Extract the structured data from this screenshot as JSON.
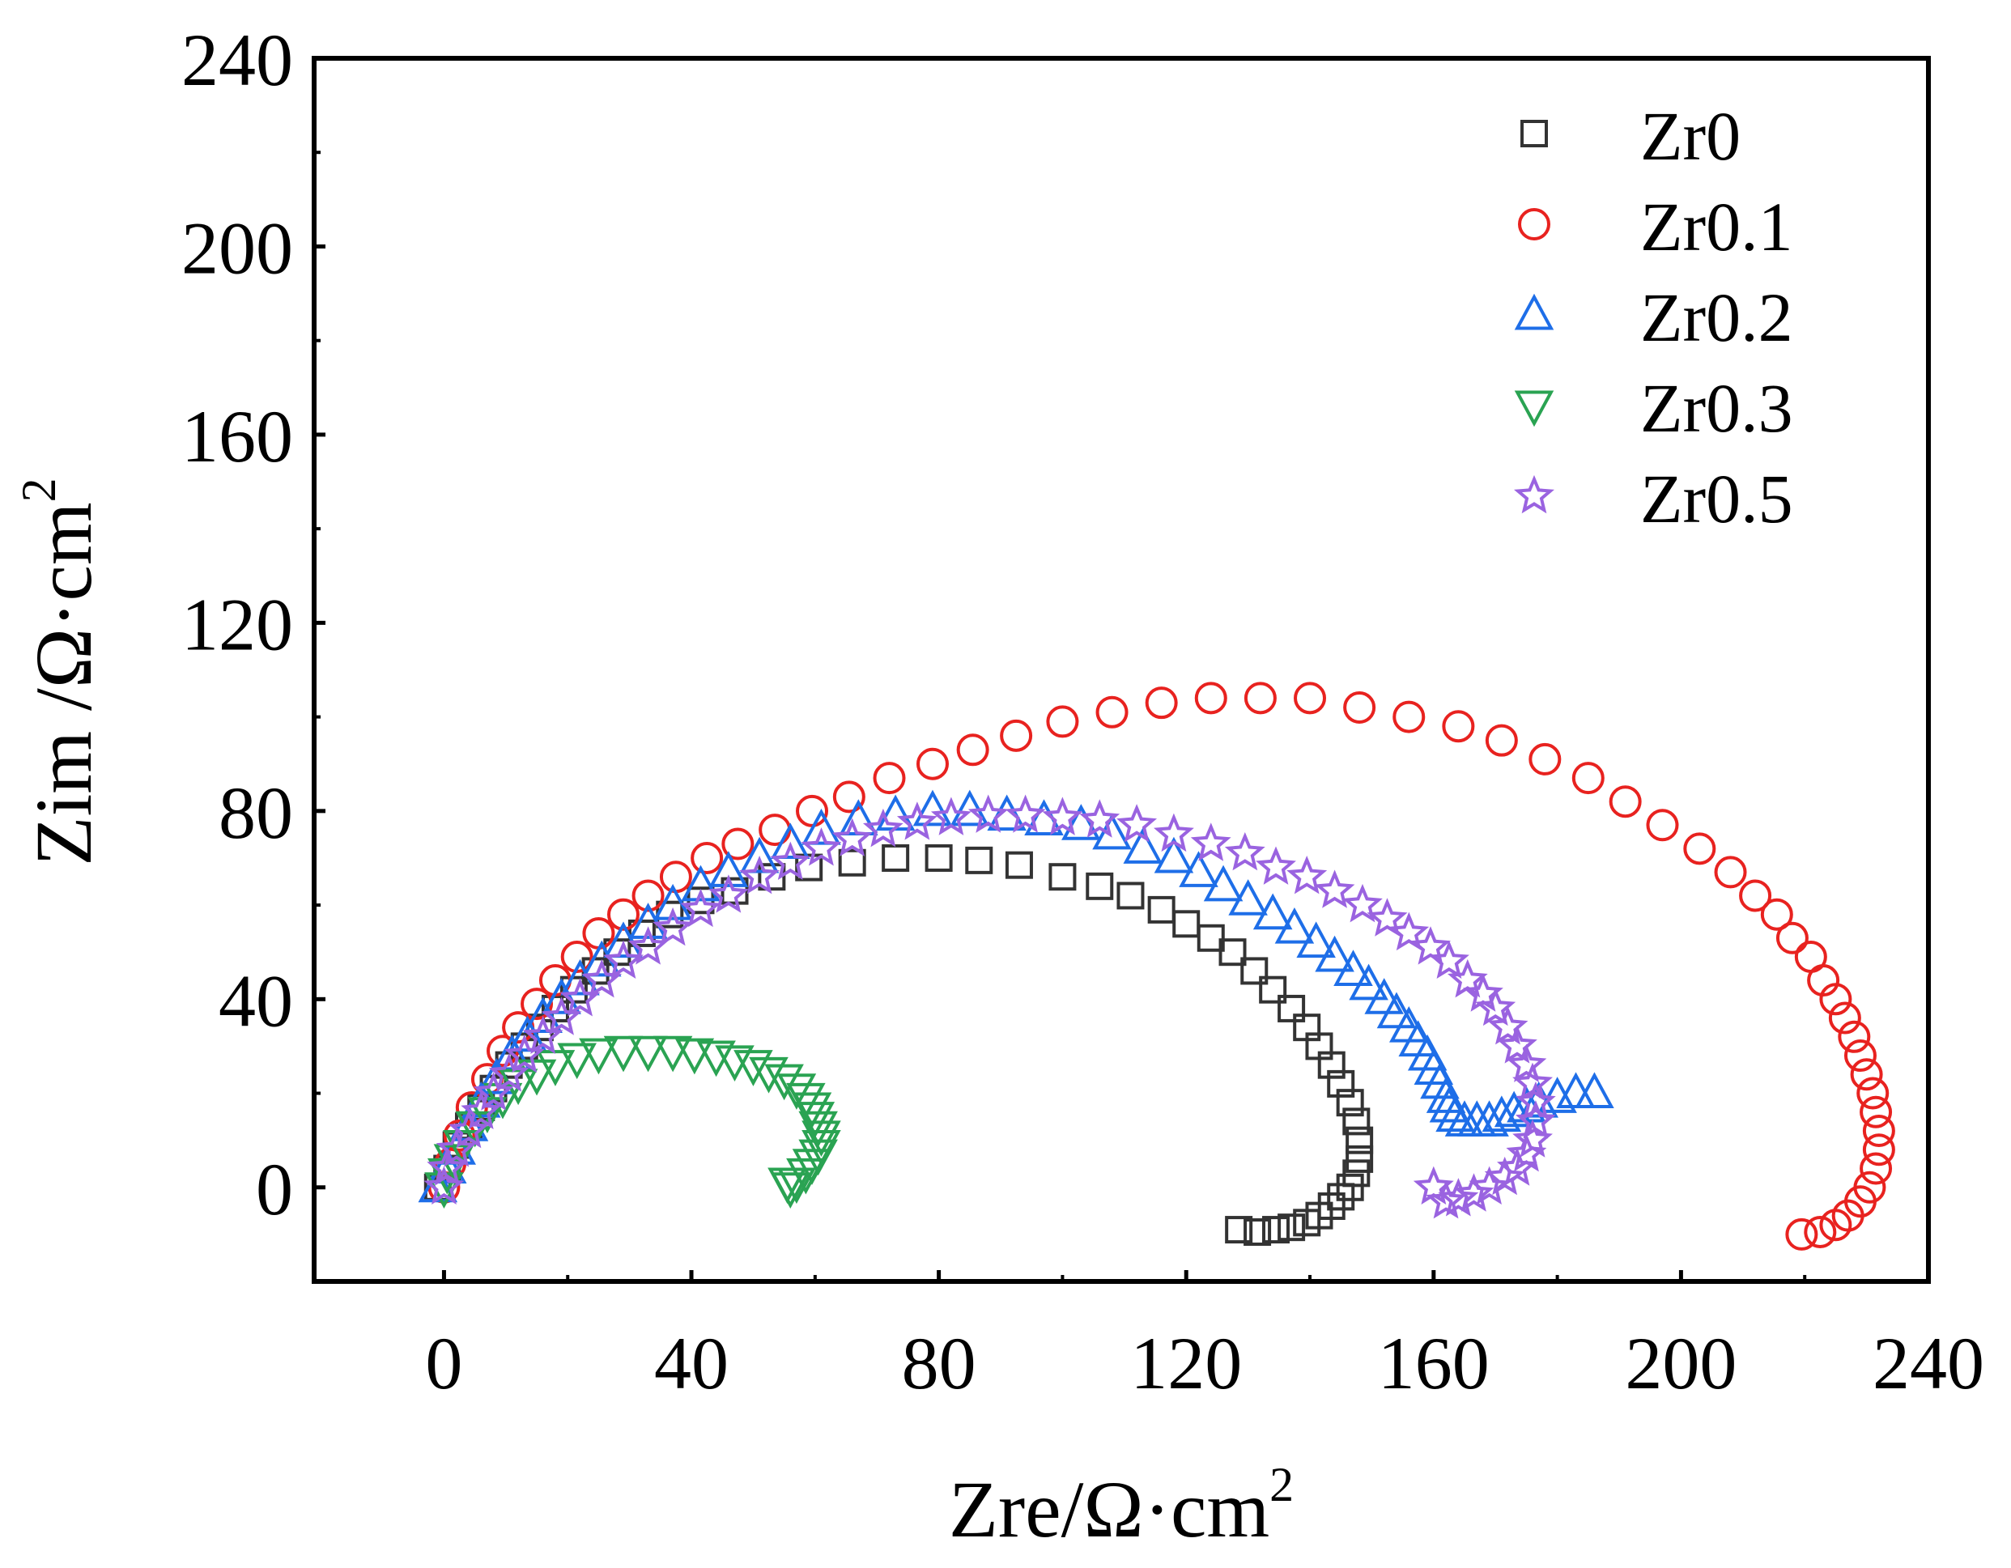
{
  "chart_data": {
    "type": "scatter",
    "title": "",
    "xlabel": "Zre/Ω·cm",
    "xlabel_sup": "2",
    "ylabel": "Zim /Ω·cm",
    "ylabel_sup": "2",
    "xlim": [
      -21,
      240
    ],
    "ylim": [
      -20,
      240
    ],
    "x_ticks": [
      0,
      40,
      80,
      120,
      160,
      200,
      240
    ],
    "y_ticks": [
      0,
      40,
      80,
      120,
      160,
      200,
      240
    ],
    "grid": false,
    "legend_position": "top-right",
    "series": [
      {
        "name": "Zr0",
        "marker": "square",
        "color": "#333333",
        "points": [
          [
            -1,
            0
          ],
          [
            0.5,
            4
          ],
          [
            2,
            9
          ],
          [
            4,
            13
          ],
          [
            6,
            17
          ],
          [
            8,
            21
          ],
          [
            10.5,
            26
          ],
          [
            13,
            30
          ],
          [
            15.5,
            34
          ],
          [
            18,
            38
          ],
          [
            21,
            42
          ],
          [
            24.5,
            46
          ],
          [
            28,
            50
          ],
          [
            32,
            54
          ],
          [
            36.5,
            58
          ],
          [
            41.5,
            61
          ],
          [
            47,
            63
          ],
          [
            53,
            66
          ],
          [
            59,
            68
          ],
          [
            66,
            69
          ],
          [
            73,
            70
          ],
          [
            80,
            70
          ],
          [
            86.5,
            69.5
          ],
          [
            93,
            68.5
          ],
          [
            100,
            66
          ],
          [
            106,
            64
          ],
          [
            111,
            62
          ],
          [
            116,
            59
          ],
          [
            120,
            56
          ],
          [
            124,
            53
          ],
          [
            127.5,
            50
          ],
          [
            131,
            46
          ],
          [
            134,
            42
          ],
          [
            137,
            38
          ],
          [
            139.5,
            34
          ],
          [
            141.5,
            30
          ],
          [
            143.5,
            26
          ],
          [
            145,
            22
          ],
          [
            146.5,
            18
          ],
          [
            147.5,
            14
          ],
          [
            148,
            10
          ],
          [
            148,
            6
          ],
          [
            147.5,
            3
          ],
          [
            146.5,
            0
          ],
          [
            145,
            -2
          ],
          [
            143.5,
            -4
          ],
          [
            141.5,
            -6
          ],
          [
            139.5,
            -7.5
          ],
          [
            137,
            -8.5
          ],
          [
            134.5,
            -9
          ],
          [
            131.5,
            -9.5
          ],
          [
            128.5,
            -9
          ]
        ]
      },
      {
        "name": "Zr0.1",
        "marker": "circle",
        "color": "#e8221f",
        "points": [
          [
            0,
            0
          ],
          [
            1,
            5
          ],
          [
            2.5,
            11
          ],
          [
            4.5,
            17
          ],
          [
            7,
            23
          ],
          [
            9.5,
            29
          ],
          [
            12,
            34
          ],
          [
            15,
            39
          ],
          [
            18,
            44
          ],
          [
            21.5,
            49
          ],
          [
            25,
            54
          ],
          [
            29,
            58
          ],
          [
            33,
            62
          ],
          [
            37.5,
            66
          ],
          [
            42.5,
            70
          ],
          [
            47.5,
            73
          ],
          [
            53.5,
            76
          ],
          [
            59.5,
            80
          ],
          [
            65.5,
            83
          ],
          [
            72,
            87
          ],
          [
            79,
            90
          ],
          [
            85.5,
            93
          ],
          [
            92.5,
            96
          ],
          [
            100,
            99
          ],
          [
            108,
            101
          ],
          [
            116,
            103
          ],
          [
            124,
            104
          ],
          [
            132,
            104
          ],
          [
            140,
            104
          ],
          [
            148,
            102
          ],
          [
            156,
            100
          ],
          [
            164,
            98
          ],
          [
            171,
            95
          ],
          [
            178,
            91
          ],
          [
            185,
            87
          ],
          [
            191,
            82
          ],
          [
            197,
            77
          ],
          [
            203,
            72
          ],
          [
            208,
            67
          ],
          [
            212,
            62
          ],
          [
            215.5,
            58
          ],
          [
            218,
            53
          ],
          [
            221,
            49
          ],
          [
            223,
            44
          ],
          [
            225,
            40
          ],
          [
            226.5,
            36
          ],
          [
            228,
            32
          ],
          [
            229,
            28
          ],
          [
            230,
            24
          ],
          [
            231,
            20
          ],
          [
            231.5,
            16
          ],
          [
            232,
            12
          ],
          [
            232,
            8
          ],
          [
            231.5,
            4
          ],
          [
            230.5,
            0
          ],
          [
            229,
            -3
          ],
          [
            227,
            -6
          ],
          [
            225,
            -8
          ],
          [
            222.5,
            -9.5
          ],
          [
            219.5,
            -10
          ]
        ]
      },
      {
        "name": "Zr0.2",
        "marker": "triangle-up",
        "color": "#1e6ee8",
        "points": [
          [
            -1,
            0
          ],
          [
            0.5,
            4
          ],
          [
            2,
            8
          ],
          [
            4,
            13
          ],
          [
            6,
            18
          ],
          [
            8.5,
            23
          ],
          [
            11,
            28
          ],
          [
            13.5,
            32
          ],
          [
            16,
            36
          ],
          [
            19,
            40
          ],
          [
            22,
            44
          ],
          [
            25.5,
            48
          ],
          [
            29,
            52
          ],
          [
            33,
            56
          ],
          [
            37,
            60
          ],
          [
            41.5,
            64
          ],
          [
            46,
            67
          ],
          [
            51,
            70
          ],
          [
            56,
            73
          ],
          [
            61,
            76
          ],
          [
            67,
            78
          ],
          [
            73,
            79
          ],
          [
            79,
            80
          ],
          [
            85,
            80
          ],
          [
            91,
            79
          ],
          [
            97,
            78
          ],
          [
            103,
            77
          ],
          [
            108,
            75
          ],
          [
            113,
            72
          ],
          [
            118,
            70
          ],
          [
            122,
            67
          ],
          [
            126,
            64
          ],
          [
            130,
            61
          ],
          [
            134,
            58
          ],
          [
            137.5,
            55
          ],
          [
            141,
            52
          ],
          [
            144,
            49
          ],
          [
            147,
            46
          ],
          [
            149.5,
            43
          ],
          [
            152,
            40
          ],
          [
            154,
            37
          ],
          [
            156,
            34
          ],
          [
            157.5,
            31
          ],
          [
            159,
            28
          ],
          [
            160,
            25
          ],
          [
            161,
            22
          ],
          [
            162,
            19
          ],
          [
            162.5,
            17
          ],
          [
            163.5,
            15
          ],
          [
            165,
            14
          ],
          [
            167,
            14
          ],
          [
            169,
            14
          ],
          [
            171,
            15
          ],
          [
            173,
            16
          ],
          [
            175,
            17
          ],
          [
            177,
            18
          ],
          [
            180,
            19
          ],
          [
            183,
            20
          ],
          [
            186,
            20
          ]
        ]
      },
      {
        "name": "Zr0.3",
        "marker": "triangle-down",
        "color": "#2aa352",
        "points": [
          [
            0,
            0
          ],
          [
            0.5,
            3
          ],
          [
            1.5,
            6
          ],
          [
            3,
            9
          ],
          [
            5,
            13
          ],
          [
            7,
            16
          ],
          [
            9.5,
            19
          ],
          [
            12,
            22
          ],
          [
            15,
            24
          ],
          [
            18,
            26
          ],
          [
            21.5,
            27.5
          ],
          [
            25,
            28.5
          ],
          [
            29,
            29
          ],
          [
            33,
            29
          ],
          [
            37,
            29
          ],
          [
            40.5,
            28.5
          ],
          [
            44,
            28
          ],
          [
            47,
            27
          ],
          [
            50,
            26
          ],
          [
            52.5,
            24.5
          ],
          [
            55,
            23
          ],
          [
            57,
            21
          ],
          [
            58.5,
            19
          ],
          [
            59.5,
            17
          ],
          [
            60,
            15
          ],
          [
            60.5,
            13
          ],
          [
            61,
            11
          ],
          [
            61,
            9
          ],
          [
            60.5,
            7
          ],
          [
            59.5,
            5
          ],
          [
            58.5,
            3
          ],
          [
            57,
            1
          ],
          [
            56,
            0
          ],
          [
            55.5,
            1
          ]
        ]
      },
      {
        "name": "Zr0.5",
        "marker": "star",
        "color": "#9a63e0",
        "points": [
          [
            0,
            0
          ],
          [
            0.5,
            4
          ],
          [
            2,
            8
          ],
          [
            4,
            12
          ],
          [
            6,
            16
          ],
          [
            8,
            20
          ],
          [
            10.5,
            24
          ],
          [
            13,
            28
          ],
          [
            16,
            32
          ],
          [
            19,
            36
          ],
          [
            22,
            40
          ],
          [
            25.5,
            44
          ],
          [
            29,
            48
          ],
          [
            33,
            51
          ],
          [
            37,
            55
          ],
          [
            41.5,
            59
          ],
          [
            46,
            62
          ],
          [
            51,
            66
          ],
          [
            56,
            69
          ],
          [
            61,
            72
          ],
          [
            66,
            74
          ],
          [
            71,
            76
          ],
          [
            76.5,
            77.5
          ],
          [
            82,
            78.5
          ],
          [
            88,
            79
          ],
          [
            94,
            79
          ],
          [
            100,
            78.5
          ],
          [
            106,
            78
          ],
          [
            112,
            77
          ],
          [
            118,
            75
          ],
          [
            124,
            73
          ],
          [
            129.5,
            71
          ],
          [
            134.5,
            68
          ],
          [
            139.5,
            66
          ],
          [
            144,
            63
          ],
          [
            148.5,
            60
          ],
          [
            152.5,
            57
          ],
          [
            156,
            54
          ],
          [
            159.5,
            51
          ],
          [
            162.5,
            48
          ],
          [
            165.5,
            44
          ],
          [
            168,
            41
          ],
          [
            170,
            38
          ],
          [
            172,
            34
          ],
          [
            173.5,
            30
          ],
          [
            175,
            26
          ],
          [
            176,
            22
          ],
          [
            176.5,
            18
          ],
          [
            176.5,
            14
          ],
          [
            176,
            10
          ],
          [
            175,
            7
          ],
          [
            173.5,
            4
          ],
          [
            171.5,
            2
          ],
          [
            169,
            0
          ],
          [
            166.5,
            -1.5
          ],
          [
            164,
            -2.5
          ],
          [
            162,
            -3
          ],
          [
            160,
            0
          ]
        ]
      }
    ]
  }
}
